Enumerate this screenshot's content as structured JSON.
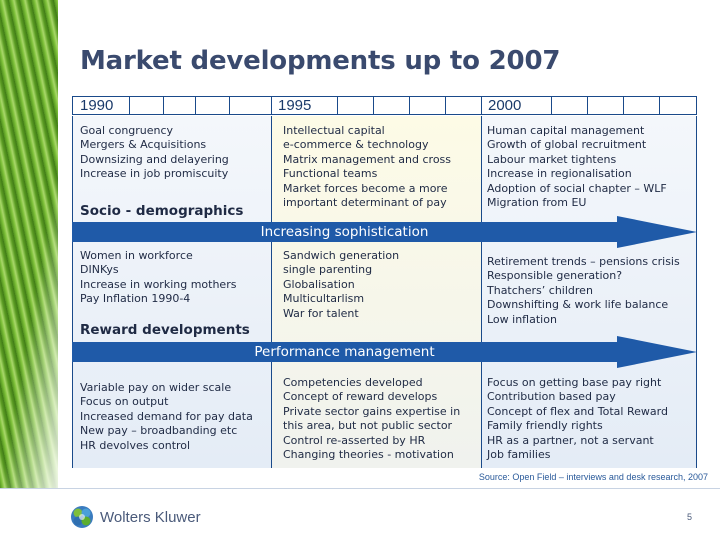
{
  "title": "Market developments up to 2007",
  "timeline": {
    "years": [
      "1990",
      "1995",
      "2000"
    ]
  },
  "rows": [
    {
      "cells": [
        [
          "Goal congruency",
          "Mergers & Acquisitions",
          "Downsizing and delayering",
          "Increase in job promiscuity"
        ],
        [
          "Intellectual capital",
          "e-commerce & technology",
          "Matrix management and cross",
          "Functional teams",
          "Market forces become a more",
          "important determinant of pay"
        ],
        [
          "Human capital management",
          "Growth of global recruitment",
          "Labour market tightens",
          "Increase in regionalisation",
          "Adoption of social chapter – WLF",
          "Migration from EU"
        ]
      ],
      "section_title": "Socio - demographics"
    },
    {
      "cells": [
        [
          "Women in workforce",
          "DINKys",
          "Increase in working mothers",
          "Pay Inflation 1990-4"
        ],
        [
          "Sandwich generation",
          "single parenting",
          "Globalisation",
          "Multicultarlism",
          "War for talent"
        ],
        [
          "Retirement trends – pensions crisis",
          "Responsible generation?",
          "Thatchers’ children",
          "Downshifting & work life balance",
          "Low inflation"
        ]
      ],
      "section_title": "Reward developments"
    },
    {
      "cells": [
        [
          "Variable pay on wider scale",
          "Focus on output",
          "Increased demand for pay data",
          "New pay – broadbanding etc",
          "HR devolves control"
        ],
        [
          "Competencies developed",
          "Concept of reward develops",
          "Private sector gains expertise in",
          "this area, but not public sector",
          "Control re-asserted by HR",
          "Changing theories - motivation"
        ],
        [
          "Focus on getting base pay right",
          "Contribution based pay",
          "Concept of flex and Total Reward",
          "Family friendly rights",
          "HR as a partner, not a servant",
          "Job families"
        ]
      ]
    }
  ],
  "arrows": [
    "Increasing sophistication",
    "Performance management"
  ],
  "source": "Source: Open Field – interviews and desk research, 2007",
  "footer": {
    "logo_text": "Wolters Kluwer",
    "page_number": "5"
  },
  "colors": {
    "arrow": "#1f5aa8",
    "title": "#3a4a6e",
    "border": "#1a4a8a"
  }
}
